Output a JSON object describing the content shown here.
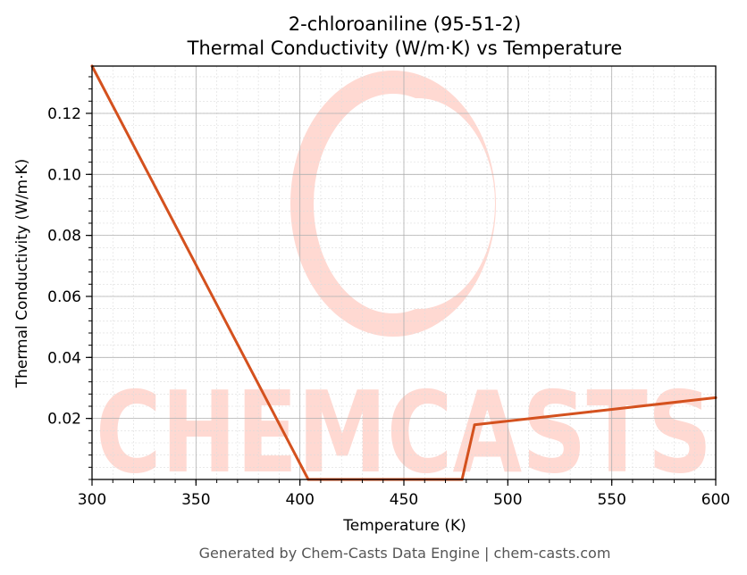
{
  "chart_data": {
    "type": "line",
    "title_line1": "2-chloroaniline (95-51-2)",
    "title_line2": "Thermal Conductivity (W/m·K) vs Temperature",
    "xlabel": "Temperature (K)",
    "ylabel": "Thermal Conductivity (W/m·K)",
    "xlim": [
      300,
      600
    ],
    "ylim": [
      0.0,
      0.1355
    ],
    "x_ticks": [
      300,
      350,
      400,
      450,
      500,
      550,
      600
    ],
    "x_tick_labels": [
      "300",
      "350",
      "400",
      "450",
      "500",
      "550",
      "600"
    ],
    "y_ticks": [
      0.02,
      0.04,
      0.06,
      0.08,
      0.1,
      0.12
    ],
    "y_tick_labels": [
      "0.02",
      "0.04",
      "0.06",
      "0.08",
      "0.10",
      "0.12"
    ],
    "grid": true,
    "series": [
      {
        "color": "#d4511e",
        "x": [
          300,
          404,
          478,
          484,
          600
        ],
        "y": [
          0.1355,
          0.0,
          0.0,
          0.0179,
          0.0268
        ]
      }
    ]
  },
  "watermark": {
    "text": "CHEMCASTS",
    "color": "#ffd9d2"
  },
  "footer": "Generated by Chem-Casts Data Engine | chem-casts.com"
}
